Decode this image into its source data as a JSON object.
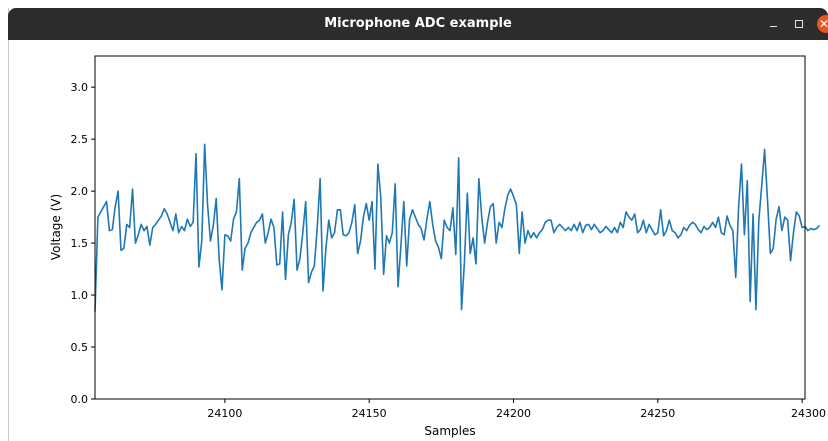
{
  "window": {
    "title": "Microphone ADC example",
    "controls": {
      "minimize_icon": "minimize-icon",
      "maximize_icon": "maximize-icon",
      "close_icon": "close-icon"
    }
  },
  "colors": {
    "titlebar": "#2c2c2c",
    "close_button": "#e95420",
    "series": "#1f77b4"
  },
  "chart_data": {
    "type": "line",
    "title": "",
    "xlabel": "Samples",
    "ylabel": "Voltage (V)",
    "xlim": [
      24055,
      24301
    ],
    "ylim": [
      0,
      3.3
    ],
    "xticks": [
      24100,
      24150,
      24200,
      24250,
      24300
    ],
    "yticks": [
      0.0,
      0.5,
      1.0,
      1.5,
      2.0,
      2.5,
      3.0
    ],
    "ytick_labels": [
      "0.0",
      "0.5",
      "1.0",
      "1.5",
      "2.0",
      "2.5",
      "3.0"
    ],
    "grid": false,
    "legend": "none",
    "x_start": 24055,
    "x_step": 1,
    "series": [
      {
        "values": [
          0.84,
          1.75,
          1.8,
          1.85,
          1.9,
          1.62,
          1.63,
          1.85,
          2.0,
          1.43,
          1.45,
          1.68,
          1.65,
          2.02,
          1.5,
          1.58,
          1.68,
          1.62,
          1.66,
          1.48,
          1.65,
          1.68,
          1.72,
          1.76,
          1.83,
          1.78,
          1.7,
          1.62,
          1.78,
          1.6,
          1.66,
          1.62,
          1.73,
          1.66,
          1.7,
          2.36,
          1.27,
          1.52,
          2.45,
          1.87,
          1.52,
          1.67,
          1.93,
          1.35,
          1.05,
          1.58,
          1.57,
          1.52,
          1.73,
          1.8,
          2.12,
          1.24,
          1.45,
          1.5,
          1.6,
          1.65,
          1.7,
          1.72,
          1.78,
          1.5,
          1.6,
          1.73,
          1.65,
          1.29,
          1.3,
          1.8,
          1.15,
          1.58,
          1.7,
          1.92,
          1.24,
          1.35,
          1.6,
          1.9,
          1.12,
          1.22,
          1.28,
          1.65,
          2.12,
          1.04,
          1.45,
          1.72,
          1.55,
          1.6,
          1.82,
          1.82,
          1.58,
          1.57,
          1.6,
          1.7,
          1.87,
          1.4,
          1.52,
          1.75,
          1.88,
          1.72,
          1.9,
          1.25,
          2.26,
          1.95,
          1.2,
          1.57,
          1.5,
          1.6,
          2.07,
          1.08,
          1.48,
          1.9,
          1.28,
          1.73,
          1.82,
          1.75,
          1.68,
          1.64,
          1.53,
          1.73,
          1.9,
          1.68,
          1.52,
          1.46,
          1.35,
          1.72,
          1.65,
          1.62,
          1.84,
          1.39,
          2.32,
          0.86,
          1.32,
          1.98,
          1.4,
          1.55,
          1.3,
          2.12,
          1.75,
          1.5,
          1.7,
          1.85,
          1.88,
          1.5,
          1.7,
          1.65,
          1.83,
          1.96,
          2.02,
          1.95,
          1.87,
          1.4,
          1.8,
          1.5,
          1.62,
          1.55,
          1.6,
          1.55,
          1.6,
          1.63,
          1.7,
          1.72,
          1.72,
          1.6,
          1.65,
          1.68,
          1.65,
          1.62,
          1.65,
          1.62,
          1.68,
          1.62,
          1.7,
          1.6,
          1.67,
          1.68,
          1.63,
          1.68,
          1.64,
          1.6,
          1.62,
          1.66,
          1.63,
          1.6,
          1.65,
          1.6,
          1.7,
          1.65,
          1.8,
          1.75,
          1.72,
          1.78,
          1.6,
          1.63,
          1.72,
          1.6,
          1.68,
          1.63,
          1.58,
          1.6,
          1.82,
          1.57,
          1.62,
          1.72,
          1.62,
          1.6,
          1.55,
          1.58,
          1.65,
          1.62,
          1.67,
          1.7,
          1.68,
          1.63,
          1.6,
          1.66,
          1.63,
          1.65,
          1.7,
          1.65,
          1.75,
          1.6,
          1.58,
          1.76,
          1.67,
          1.62,
          1.17,
          1.85,
          2.26,
          1.58,
          2.1,
          0.94,
          1.78,
          0.86,
          1.72,
          2.05,
          2.4,
          1.92,
          1.4,
          1.45,
          1.73,
          1.85,
          1.62,
          1.75,
          1.72,
          1.33,
          1.6,
          1.8,
          1.76,
          1.65,
          1.66,
          1.62,
          1.64,
          1.63,
          1.64,
          1.67
        ]
      }
    ]
  }
}
